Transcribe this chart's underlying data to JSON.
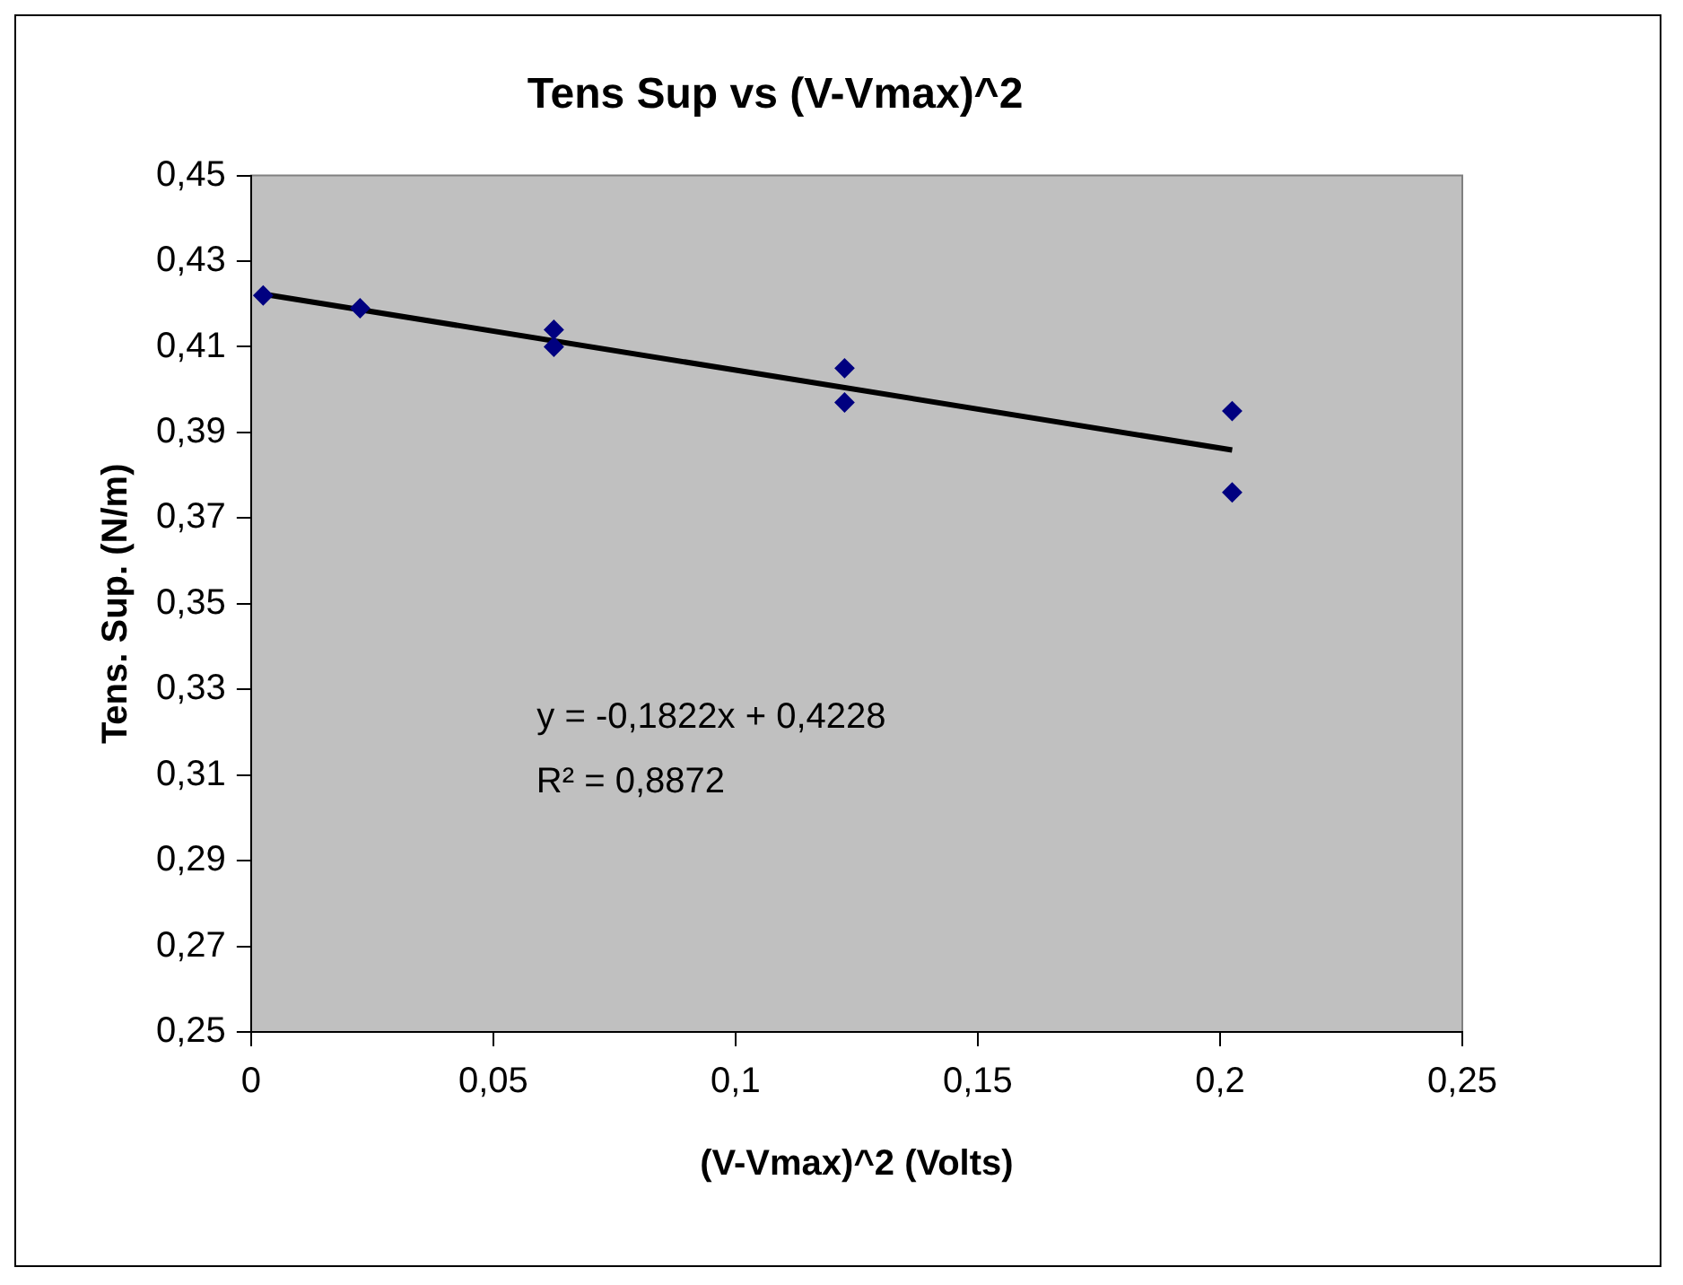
{
  "chart_data": {
    "type": "scatter",
    "title": "Tens Sup vs (V-Vmax)^2",
    "xlabel": "(V-Vmax)^2 (Volts)",
    "ylabel": "Tens. Sup. (N/m)",
    "series": [
      {
        "color": "#000080",
        "marker": "diamond",
        "x": [
          0.0025,
          0.0225,
          0.0625,
          0.0625,
          0.1225,
          0.1225,
          0.2025,
          0.2025
        ],
        "values": [
          0.422,
          0.419,
          0.414,
          0.41,
          0.405,
          0.397,
          0.395,
          0.376
        ]
      },
      {
        "type": "line",
        "color": "#000000",
        "marker": "none",
        "x": [
          0.0025,
          0.2025
        ],
        "values": [
          0.4223,
          0.3859
        ]
      }
    ],
    "xlim": [
      0,
      0.25
    ],
    "xticks": [
      {
        "value": 0,
        "label": "0"
      },
      {
        "value": 0.05,
        "label": "0,05"
      },
      {
        "value": 0.1,
        "label": "0,1"
      },
      {
        "value": 0.15,
        "label": "0,15"
      },
      {
        "value": 0.2,
        "label": "0,2"
      },
      {
        "value": 0.25,
        "label": "0,25"
      }
    ],
    "ylim": [
      0.25,
      0.45
    ],
    "yticks": [
      {
        "value": 0.25,
        "label": "0,25"
      },
      {
        "value": 0.27,
        "label": "0,27"
      },
      {
        "value": 0.29,
        "label": "0,29"
      },
      {
        "value": 0.31,
        "label": "0,31"
      },
      {
        "value": 0.33,
        "label": "0,33"
      },
      {
        "value": 0.35,
        "label": "0,35"
      },
      {
        "value": 0.37,
        "label": "0,37"
      },
      {
        "value": 0.39,
        "label": "0,39"
      },
      {
        "value": 0.41,
        "label": "0,41"
      },
      {
        "value": 0.43,
        "label": "0,43"
      },
      {
        "value": 0.45,
        "label": "0,45"
      }
    ],
    "annotations": [
      "y = -0,1822x + 0,4228",
      "R² = 0,8872"
    ],
    "grid": false,
    "legend": false
  }
}
